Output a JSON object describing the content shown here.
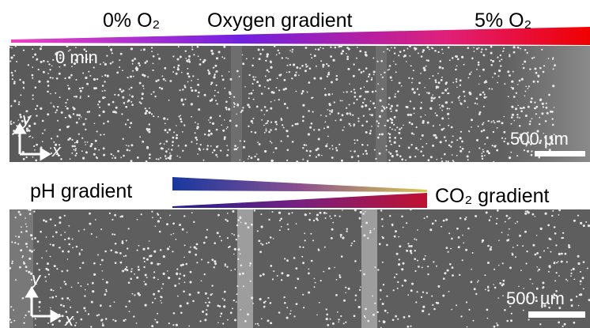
{
  "top_panel": {
    "left_label": "0% O₂",
    "center_label": "Oxygen gradient",
    "right_label": "5% O₂",
    "time": "0 min",
    "axis_y": "y",
    "axis_x": "x",
    "scale_bar": "500 µm"
  },
  "middle": {
    "left_label": "pH gradient",
    "right_label": "CO₂ gradient"
  },
  "bottom_panel": {
    "axis_y": "y",
    "axis_x": "x",
    "scale_bar": "500 µm"
  }
}
